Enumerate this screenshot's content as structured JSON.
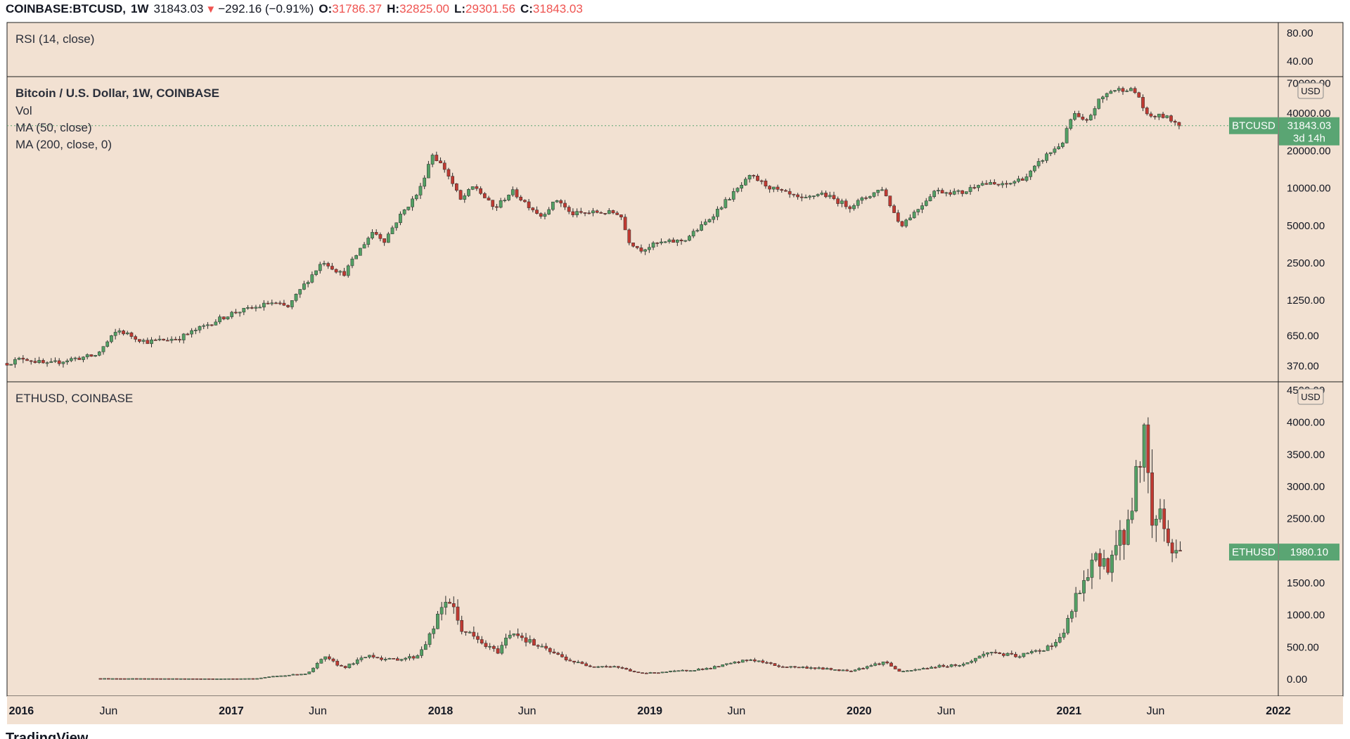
{
  "header": {
    "symbol": "COINBASE:BTCUSD",
    "interval": "1W",
    "last": "31843.03",
    "change": "−292.16 (−0.91%)",
    "o_label": "O:",
    "o": "31786.37",
    "h_label": "H:",
    "h": "32825.00",
    "l_label": "L:",
    "l": "29301.56",
    "c_label": "C:",
    "c": "31843.03"
  },
  "rsi_pane": {
    "legend": "RSI (14, close)",
    "ticks": [
      "80.00",
      "40.00"
    ]
  },
  "btc_pane": {
    "legend": [
      "Bitcoin / U.S. Dollar, 1W, COINBASE",
      "Vol",
      "MA (50, close)",
      "MA (200, close, 0)"
    ],
    "unit": "USD",
    "ticks": [
      "70000.00",
      "40000.00",
      "20000.00",
      "10000.00",
      "5000.00",
      "2500.00",
      "1250.00",
      "650.00",
      "370.00"
    ],
    "price_tag": {
      "label": "BTCUSD",
      "value": "31843.03",
      "countdown": "3d 14h"
    }
  },
  "eth_pane": {
    "legend": "ETHUSD, COINBASE",
    "unit": "USD",
    "ticks": [
      "4500.00",
      "4000.00",
      "3500.00",
      "3000.00",
      "2500.00",
      "2000.00",
      "1500.00",
      "1000.00",
      "500.00",
      "0.00"
    ],
    "price_tag": {
      "label": "ETHUSD",
      "value": "1980.10"
    }
  },
  "x_axis": {
    "labels": [
      "2016",
      "Jun",
      "2017",
      "Jun",
      "2018",
      "Jun",
      "2019",
      "Jun",
      "2020",
      "Jun",
      "2021",
      "Jun",
      "2022"
    ],
    "bold": [
      true,
      false,
      true,
      false,
      true,
      false,
      true,
      false,
      true,
      false,
      true,
      false,
      true
    ]
  },
  "footer": {
    "brand": "TradingView"
  },
  "colors": {
    "background": "#f2e1d2",
    "up": "#53a064",
    "down": "#bf3a32",
    "tag": "#5aa573",
    "grid_line": "#1f1f1f"
  },
  "chart_data": [
    {
      "type": "candlestick",
      "title": "Bitcoin / U.S. Dollar, 1W, COINBASE",
      "series_name": "BTCUSD",
      "scale": "log",
      "interval": "1W",
      "x_range": [
        "2015-12-07",
        "2022-01-01"
      ],
      "y_ticks": [
        70000,
        40000,
        20000,
        10000,
        5000,
        2500,
        1250,
        650,
        370
      ],
      "last_price": 31843.03,
      "anchors": [
        [
          "2015-12-07",
          390
        ],
        [
          "2016-01-05",
          430
        ],
        [
          "2016-02-15",
          380
        ],
        [
          "2016-03-25",
          420
        ],
        [
          "2016-05-10",
          450
        ],
        [
          "2016-06-17",
          720
        ],
        [
          "2016-08-05",
          580
        ],
        [
          "2016-10-01",
          620
        ],
        [
          "2016-12-15",
          900
        ],
        [
          "2017-01-05",
          1000
        ],
        [
          "2017-02-15",
          1100
        ],
        [
          "2017-03-10",
          1200
        ],
        [
          "2017-04-10",
          1100
        ],
        [
          "2017-05-05",
          1600
        ],
        [
          "2017-06-10",
          2600
        ],
        [
          "2017-07-15",
          2000
        ],
        [
          "2017-08-15",
          3300
        ],
        [
          "2017-09-05",
          4500
        ],
        [
          "2017-09-25",
          3800
        ],
        [
          "2017-10-20",
          5800
        ],
        [
          "2017-11-25",
          9500
        ],
        [
          "2017-12-17",
          19000
        ],
        [
          "2018-01-10",
          14000
        ],
        [
          "2018-02-05",
          8000
        ],
        [
          "2018-03-01",
          10500
        ],
        [
          "2018-04-05",
          6800
        ],
        [
          "2018-05-05",
          9500
        ],
        [
          "2018-06-25",
          6000
        ],
        [
          "2018-07-25",
          8200
        ],
        [
          "2018-08-15",
          6200
        ],
        [
          "2018-10-01",
          6400
        ],
        [
          "2018-11-10",
          6300
        ],
        [
          "2018-11-25",
          3800
        ],
        [
          "2018-12-15",
          3200
        ],
        [
          "2019-01-15",
          3600
        ],
        [
          "2019-03-01",
          3800
        ],
        [
          "2019-04-05",
          5100
        ],
        [
          "2019-05-15",
          8000
        ],
        [
          "2019-06-26",
          12500
        ],
        [
          "2019-08-01",
          10000
        ],
        [
          "2019-09-25",
          8000
        ],
        [
          "2019-10-25",
          9200
        ],
        [
          "2019-12-15",
          7100
        ],
        [
          "2020-02-10",
          10000
        ],
        [
          "2020-03-13",
          5000
        ],
        [
          "2020-04-15",
          7000
        ],
        [
          "2020-05-10",
          9500
        ],
        [
          "2020-07-01",
          9200
        ],
        [
          "2020-07-27",
          11000
        ],
        [
          "2020-09-10",
          10500
        ],
        [
          "2020-10-20",
          12500
        ],
        [
          "2020-11-20",
          18000
        ],
        [
          "2020-12-20",
          23000
        ],
        [
          "2021-01-08",
          40000
        ],
        [
          "2021-01-30",
          33000
        ],
        [
          "2021-02-21",
          50000
        ],
        [
          "2021-03-14",
          61000
        ],
        [
          "2021-04-14",
          63500
        ],
        [
          "2021-05-01",
          57000
        ],
        [
          "2021-05-16",
          38000
        ],
        [
          "2021-06-15",
          38000
        ],
        [
          "2021-07-18",
          31843
        ]
      ]
    },
    {
      "type": "candlestick",
      "title": "ETHUSD, COINBASE",
      "series_name": "ETHUSD",
      "scale": "linear",
      "interval": "1W",
      "x_range": [
        "2015-12-07",
        "2022-01-01"
      ],
      "y_range": [
        0,
        4500
      ],
      "last_price": 1980.1,
      "anchors": [
        [
          "2016-05-18",
          12
        ],
        [
          "2016-12-15",
          8
        ],
        [
          "2017-02-15",
          12
        ],
        [
          "2017-03-15",
          45
        ],
        [
          "2017-05-15",
          90
        ],
        [
          "2017-06-12",
          340
        ],
        [
          "2017-07-16",
          180
        ],
        [
          "2017-08-31",
          380
        ],
        [
          "2017-10-01",
          300
        ],
        [
          "2017-11-20",
          350
        ],
        [
          "2017-12-15",
          700
        ],
        [
          "2018-01-13",
          1300
        ],
        [
          "2018-02-05",
          800
        ],
        [
          "2018-03-15",
          550
        ],
        [
          "2018-04-10",
          420
        ],
        [
          "2018-05-05",
          760
        ],
        [
          "2018-06-15",
          530
        ],
        [
          "2018-08-15",
          290
        ],
        [
          "2018-09-15",
          210
        ],
        [
          "2018-11-01",
          200
        ],
        [
          "2018-12-15",
          90
        ],
        [
          "2019-02-15",
          125
        ],
        [
          "2019-04-15",
          170
        ],
        [
          "2019-06-26",
          310
        ],
        [
          "2019-08-15",
          200
        ],
        [
          "2019-10-15",
          175
        ],
        [
          "2019-12-15",
          130
        ],
        [
          "2020-02-15",
          270
        ],
        [
          "2020-03-13",
          110
        ],
        [
          "2020-05-15",
          200
        ],
        [
          "2020-07-01",
          230
        ],
        [
          "2020-08-15",
          430
        ],
        [
          "2020-10-01",
          350
        ],
        [
          "2020-11-15",
          460
        ],
        [
          "2020-12-20",
          640
        ],
        [
          "2021-01-10",
          1200
        ],
        [
          "2021-02-20",
          1900
        ],
        [
          "2021-03-10",
          1800
        ],
        [
          "2021-04-15",
          2400
        ],
        [
          "2021-05-12",
          3950
        ],
        [
          "2021-05-25",
          2400
        ],
        [
          "2021-06-08",
          2650
        ],
        [
          "2021-06-28",
          2000
        ],
        [
          "2021-07-18",
          1980
        ]
      ]
    }
  ]
}
